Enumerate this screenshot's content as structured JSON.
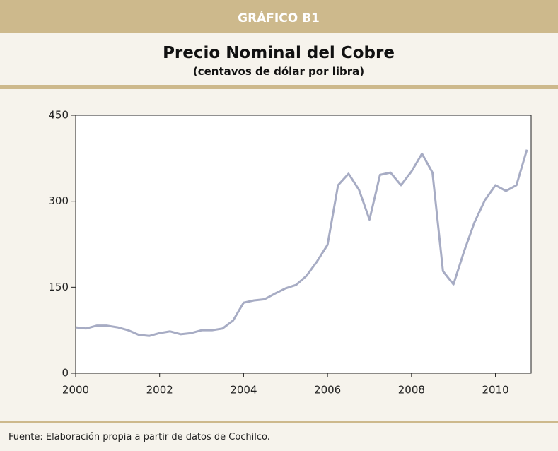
{
  "header": {
    "label": "GRÁFICO B1"
  },
  "chart_data": {
    "type": "line",
    "title": "Precio Nominal del Cobre",
    "subtitle": "(centavos de dólar por libra)",
    "x": [
      2000,
      2000.25,
      2000.5,
      2000.75,
      2001,
      2001.25,
      2001.5,
      2001.75,
      2002,
      2002.25,
      2002.5,
      2002.75,
      2003,
      2003.25,
      2003.5,
      2003.75,
      2004,
      2004.25,
      2004.5,
      2004.75,
      2005,
      2005.25,
      2005.5,
      2005.75,
      2006,
      2006.25,
      2006.5,
      2006.75,
      2007,
      2007.25,
      2007.5,
      2007.75,
      2008,
      2008.25,
      2008.5,
      2008.75,
      2009,
      2009.25,
      2009.5,
      2009.75,
      2010,
      2010.25,
      2010.5,
      2010.75
    ],
    "values": [
      80,
      78,
      83,
      83,
      80,
      75,
      67,
      65,
      70,
      73,
      68,
      70,
      75,
      75,
      78,
      92,
      123,
      127,
      129,
      139,
      148,
      154,
      170,
      195,
      224,
      328,
      348,
      320,
      268,
      346,
      350,
      328,
      352,
      383,
      350,
      178,
      155,
      212,
      263,
      302,
      328,
      318,
      328,
      390
    ],
    "color": "#a7acc4",
    "xlim": [
      2000,
      2010.85
    ],
    "ylim": [
      0,
      450
    ],
    "xticks": [
      2000,
      2002,
      2004,
      2006,
      2008,
      2010
    ],
    "yticks": [
      0,
      150,
      300,
      450
    ]
  },
  "footer": {
    "source": "Fuente: Elaboración propia a partir de datos de Cochilco."
  }
}
